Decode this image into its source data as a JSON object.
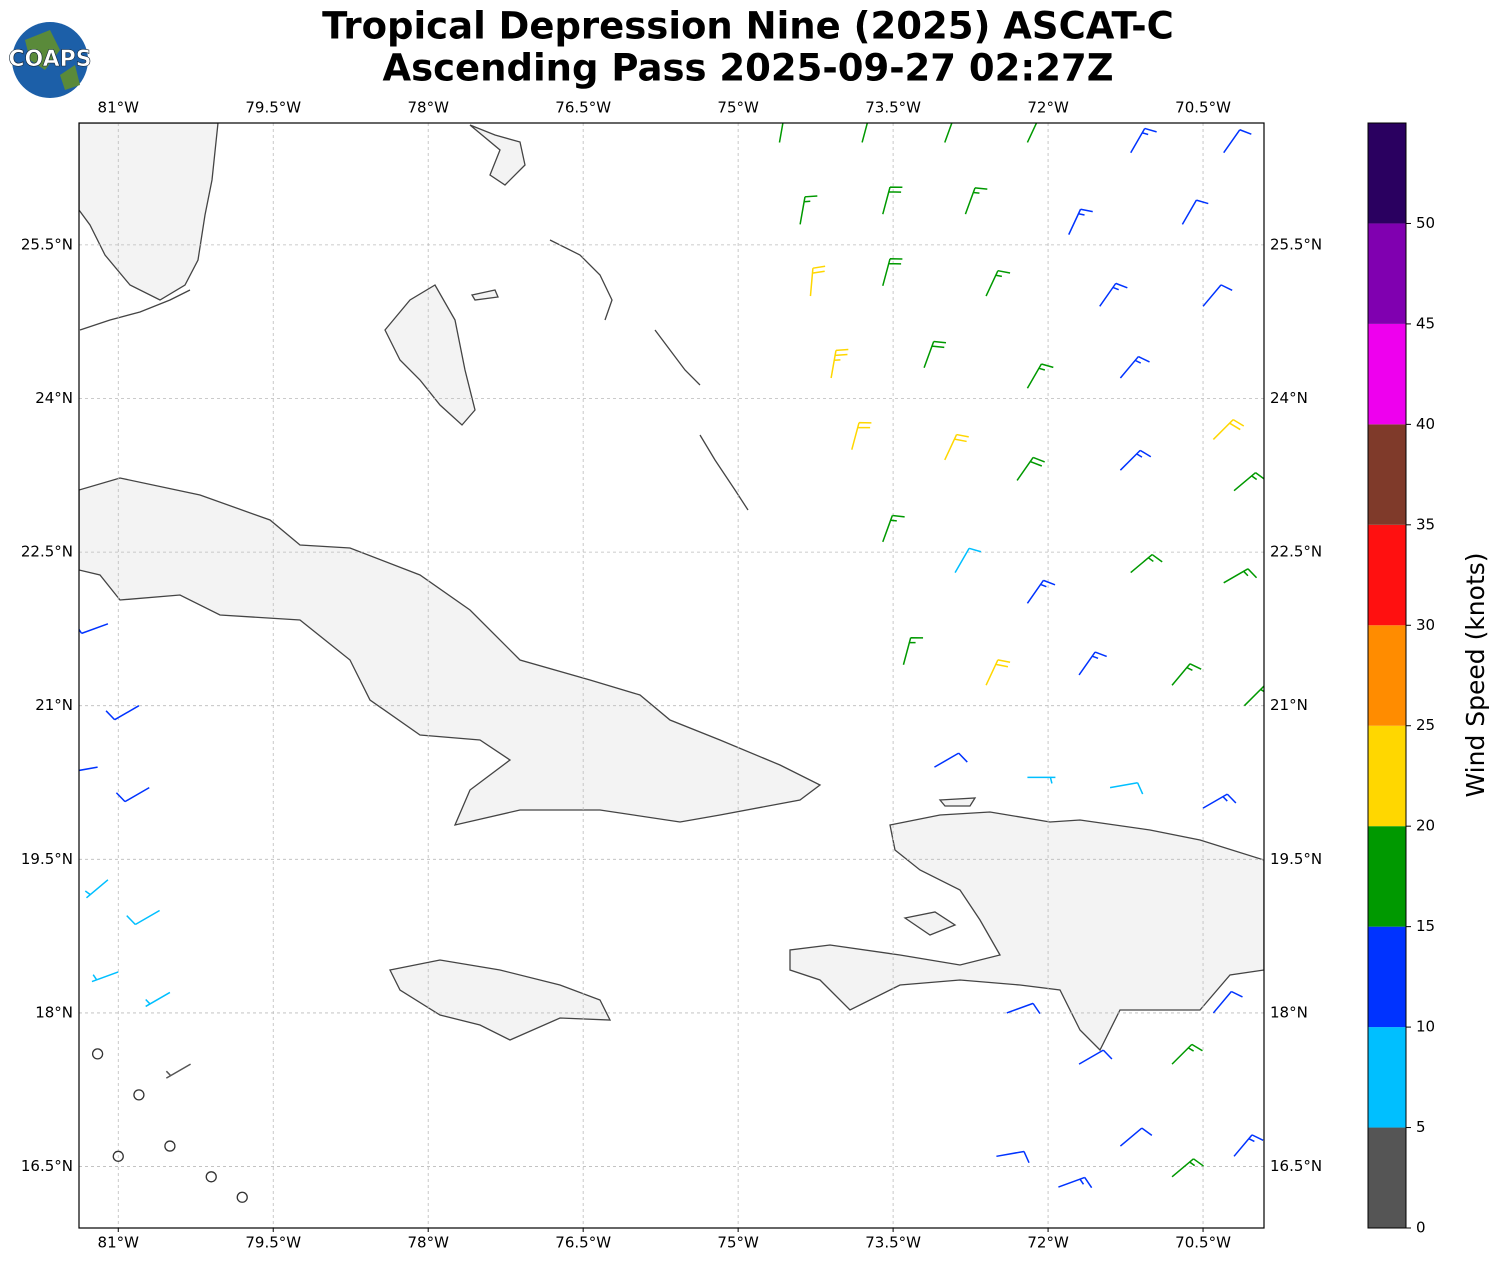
{
  "header": {
    "title_line1": "Tropical Depression Nine (2025) ASCAT-C",
    "title_line2": "Ascending Pass 2025-09-27 02:27Z",
    "logo": "COAPS"
  },
  "map": {
    "xlim": [
      -81.38,
      -69.91
    ],
    "ylim": [
      15.9,
      26.69
    ],
    "xticks": [
      {
        "value": -81,
        "label": "81°W"
      },
      {
        "value": -79.5,
        "label": "79.5°W"
      },
      {
        "value": -78,
        "label": "78°W"
      },
      {
        "value": -76.5,
        "label": "76.5°W"
      },
      {
        "value": -75,
        "label": "75°W"
      },
      {
        "value": -73.5,
        "label": "73.5°W"
      },
      {
        "value": -72,
        "label": "72°W"
      },
      {
        "value": -70.5,
        "label": "70.5°W"
      }
    ],
    "yticks": [
      {
        "value": 16.5,
        "label": "16.5°N"
      },
      {
        "value": 18,
        "label": "18°N"
      },
      {
        "value": 19.5,
        "label": "19.5°N"
      },
      {
        "value": 21,
        "label": "21°N"
      },
      {
        "value": 22.5,
        "label": "22.5°N"
      },
      {
        "value": 24,
        "label": "24°N"
      },
      {
        "value": 25.5,
        "label": "25.5°N"
      }
    ],
    "grid": true,
    "barbs": {
      "lon": [
        -74.6,
        -73.8,
        -73.0,
        -72.2,
        -71.2,
        -70.3,
        -74.4,
        -73.6,
        -72.8,
        -71.8,
        -70.7,
        -74.3,
        -73.6,
        -72.6,
        -71.5,
        -70.5,
        -74.1,
        -73.2,
        -72.2,
        -71.3,
        -70.4,
        -73.9,
        -73.0,
        -72.3,
        -71.3,
        -70.2,
        -73.6,
        -72.9,
        -72.2,
        -71.2,
        -70.3,
        -73.4,
        -72.6,
        -71.7,
        -70.8,
        -70.1,
        -73.1,
        -72.2,
        -71.4,
        -70.5,
        -72.4,
        -71.7,
        -71.3,
        -70.8,
        -70.4,
        -72.5,
        -71.9,
        -70.8,
        -70.2,
        -81.1,
        -80.8,
        -81.2,
        -80.7,
        -81.1,
        -80.6,
        -81.0,
        -80.5,
        -81.2,
        -80.8,
        -80.3,
        -81.0,
        -80.5,
        -80.1,
        -79.8
      ],
      "lat": [
        26.5,
        26.5,
        26.5,
        26.5,
        26.4,
        26.4,
        25.7,
        25.8,
        25.8,
        25.6,
        25.7,
        25.0,
        25.1,
        25.0,
        24.9,
        24.9,
        24.2,
        24.3,
        24.1,
        24.2,
        23.6,
        23.5,
        23.4,
        23.2,
        23.3,
        23.1,
        22.6,
        22.3,
        22.0,
        22.3,
        22.2,
        21.4,
        21.2,
        21.3,
        21.2,
        21.0,
        20.4,
        20.3,
        20.2,
        20.0,
        18.0,
        17.5,
        16.7,
        17.5,
        18.0,
        16.6,
        16.3,
        16.4,
        16.6,
        21.8,
        21.0,
        20.4,
        20.2,
        19.3,
        19.0,
        18.4,
        18.2,
        17.6,
        17.2,
        17.5,
        16.6,
        16.7,
        16.4,
        16.2
      ],
      "speed": [
        16,
        17,
        18,
        17,
        13,
        12,
        17,
        18,
        17,
        13,
        12,
        22,
        19,
        16,
        13,
        12,
        23,
        19,
        16,
        13,
        21,
        22,
        22,
        18,
        14,
        17,
        17,
        8,
        13,
        16,
        17,
        17,
        22,
        13,
        17,
        17,
        12,
        7,
        8,
        14,
        11,
        12,
        12,
        16,
        12,
        12,
        13,
        15,
        13,
        11,
        11,
        12,
        12,
        7,
        8,
        7,
        7,
        0,
        1,
        3,
        0,
        1,
        0,
        0
      ],
      "direction": [
        10,
        15,
        20,
        25,
        30,
        35,
        10,
        15,
        20,
        25,
        30,
        5,
        15,
        25,
        35,
        40,
        10,
        20,
        30,
        40,
        45,
        15,
        25,
        35,
        45,
        50,
        20,
        30,
        35,
        50,
        60,
        15,
        25,
        35,
        40,
        45,
        60,
        90,
        80,
        60,
        70,
        60,
        50,
        45,
        40,
        80,
        70,
        50,
        40,
        250,
        240,
        260,
        240,
        230,
        240,
        250,
        240,
        0,
        0,
        240,
        0,
        0,
        0,
        0
      ]
    }
  },
  "colorbar": {
    "label": "Wind Speed (knots)",
    "bounds": [
      0,
      5,
      10,
      15,
      20,
      25,
      30,
      35,
      40,
      45,
      50,
      55
    ],
    "colors": [
      "#555555",
      "#00bfff",
      "#0033ff",
      "#009900",
      "#ffd700",
      "#ff8c00",
      "#ff1010",
      "#7f3a2a",
      "#ee00ee",
      "#8000b0",
      "#2a0060"
    ],
    "ticks": [
      0,
      5,
      10,
      15,
      20,
      25,
      30,
      35,
      40,
      45,
      50
    ]
  }
}
